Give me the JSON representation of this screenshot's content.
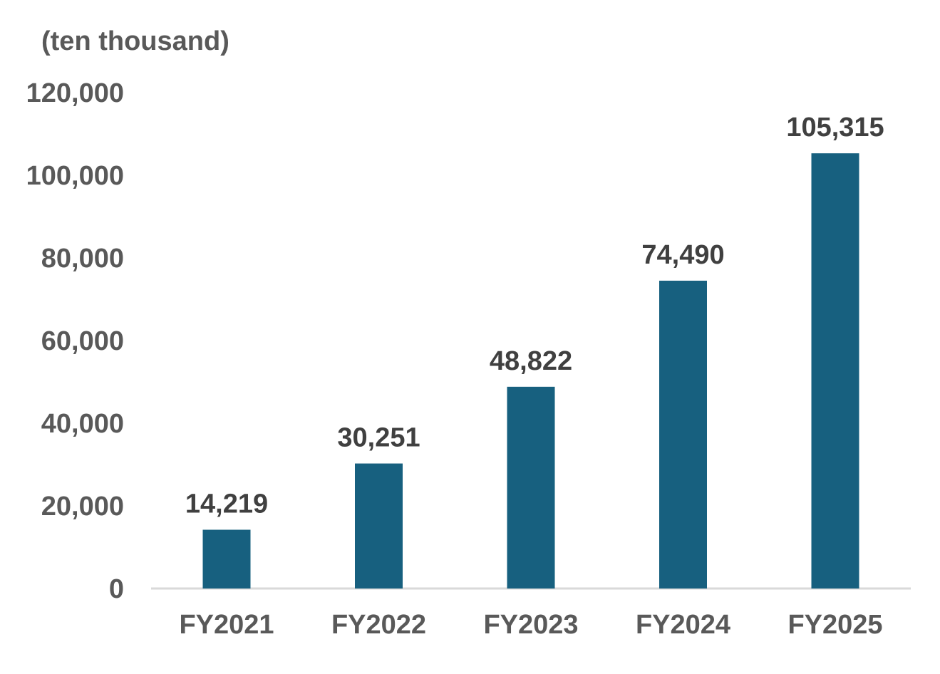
{
  "chart_data": {
    "type": "bar",
    "unit_label": "(ten thousand)",
    "categories": [
      "FY2021",
      "FY2022",
      "FY2023",
      "FY2024",
      "FY2025"
    ],
    "values": [
      14219,
      30251,
      48822,
      74490,
      105315
    ],
    "data_labels": [
      "14,219",
      "30,251",
      "48,822",
      "74,490",
      "105,315"
    ],
    "y_ticks": [
      "0",
      "20,000",
      "40,000",
      "60,000",
      "80,000",
      "100,000",
      "120,000"
    ],
    "ylim": [
      0,
      120000
    ],
    "grid": false,
    "legend": "none",
    "bar_color": "#17607f",
    "axis_color": "#d9d9d9"
  }
}
